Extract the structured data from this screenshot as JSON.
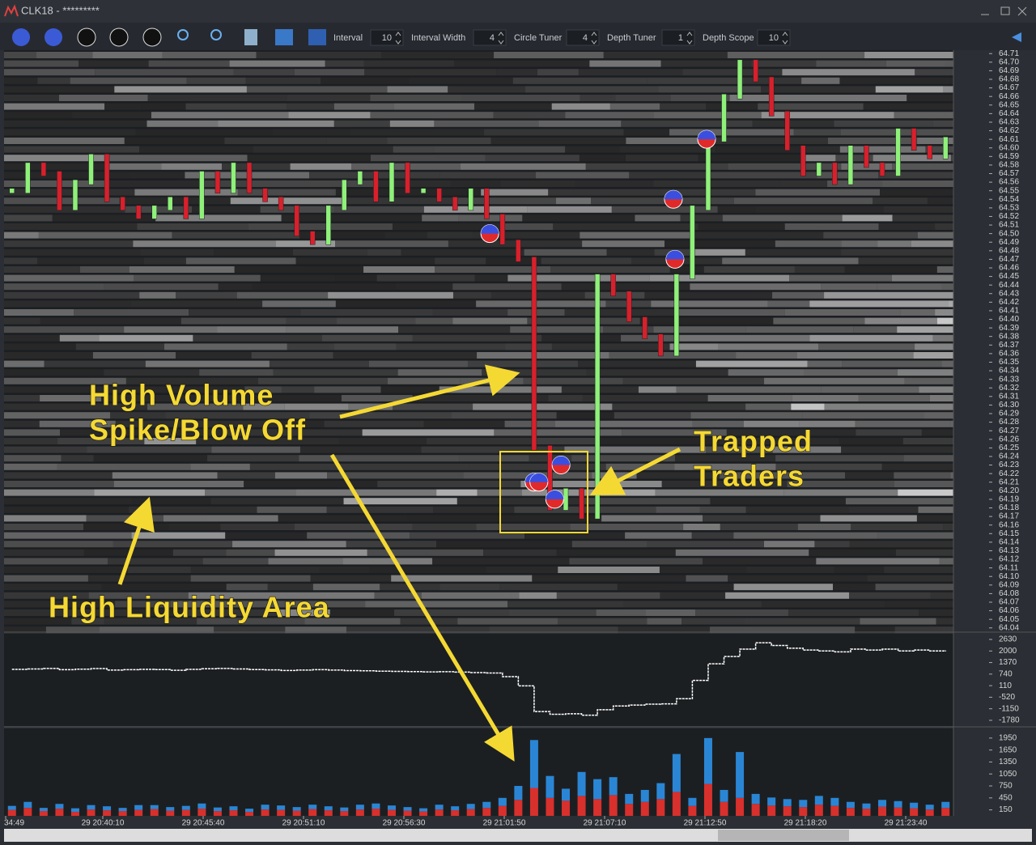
{
  "window": {
    "title": "CLK18 - *********"
  },
  "toolbar": {
    "fields": [
      {
        "label": "Interval",
        "value": 10
      },
      {
        "label": "Interval Width",
        "value": 4
      },
      {
        "label": "Circle Tuner",
        "value": 4
      },
      {
        "label": "Depth Tuner",
        "value": 1
      },
      {
        "label": "Depth Scope",
        "value": 10
      }
    ]
  },
  "chart_data": [
    {
      "type": "price-ladder",
      "ylim": [
        64.036,
        64.714
      ],
      "yticks": [
        64.71,
        {
          "value": 64.7,
          "label": "64.70"
        },
        64.69,
        64.68,
        64.67,
        64.66,
        64.65,
        64.64,
        64.63,
        64.62,
        64.61,
        {
          "value": 64.6,
          "label": "64.60"
        },
        64.59,
        64.58,
        64.57,
        64.56,
        64.55,
        64.54,
        64.53,
        64.52,
        64.51,
        {
          "value": 64.5,
          "label": "64.50"
        },
        64.49,
        64.48,
        64.47,
        64.46,
        64.45,
        64.44,
        64.43,
        64.42,
        64.41,
        {
          "value": 64.4,
          "label": "64.40"
        },
        64.39,
        64.38,
        64.37,
        64.36,
        64.35,
        64.34,
        64.33,
        64.32,
        64.31,
        {
          "value": 64.3,
          "label": "64.30"
        },
        64.29,
        64.28,
        64.27,
        64.26,
        64.25,
        64.24,
        64.23,
        64.22,
        64.21,
        {
          "value": 64.2,
          "label": "64.20"
        },
        64.19,
        64.18,
        64.17,
        64.16,
        64.15,
        64.14,
        64.13,
        64.12,
        64.11,
        {
          "value": 64.1,
          "label": "64.10"
        },
        64.09,
        64.08,
        64.07,
        64.06,
        64.05,
        64.04
      ],
      "values": [
        64.55,
        64.58,
        64.57,
        64.53,
        64.56,
        64.59,
        64.54,
        64.53,
        64.52,
        64.53,
        64.54,
        64.52,
        64.57,
        64.55,
        64.58,
        64.55,
        64.54,
        64.53,
        64.5,
        64.49,
        64.53,
        64.56,
        64.57,
        64.54,
        64.58,
        64.55,
        64.55,
        64.54,
        64.53,
        64.55,
        64.52,
        64.49,
        64.47,
        64.25,
        64.18,
        64.2,
        64.17,
        64.45,
        64.43,
        64.4,
        64.38,
        64.36,
        64.45,
        64.53,
        64.61,
        64.66,
        64.7,
        64.68,
        64.64,
        64.6,
        64.57,
        64.58,
        64.56,
        64.6,
        64.58,
        64.57,
        64.62,
        64.6,
        64.59,
        64.61
      ],
      "markers": {
        "x": [
          30.2,
          41.8,
          41.9,
          43.9,
          33.0,
          33.3,
          34.7,
          34.3
        ],
        "y": [
          64.5,
          64.54,
          64.47,
          64.61,
          64.21,
          64.21,
          64.23,
          64.19
        ]
      }
    },
    {
      "type": "line",
      "ylim": [
        -2090,
        2940
      ],
      "yticks": [
        2630,
        2000,
        1370,
        740,
        110,
        -520,
        -1150,
        -1780
      ],
      "color": "#ffffff",
      "values": [
        1000,
        1020,
        1050,
        980,
        1010,
        1040,
        960,
        980,
        1000,
        990,
        950,
        1000,
        1030,
        1050,
        1020,
        990,
        970,
        940,
        960,
        980,
        960,
        930,
        920,
        900,
        890,
        880,
        860,
        870,
        850,
        820,
        800,
        600,
        100,
        -1300,
        -1450,
        -1420,
        -1500,
        -1200,
        -1000,
        -950,
        -900,
        -880,
        -600,
        400,
        1300,
        1700,
        2100,
        2450,
        2300,
        2150,
        2050,
        2000,
        1950,
        2100,
        2050,
        2100,
        2000,
        2050,
        2000,
        2030
      ]
    },
    {
      "type": "stacked-bar",
      "ylim": [
        0,
        2150
      ],
      "yticks": [
        1950,
        1650,
        1350,
        1050,
        750,
        450,
        150
      ],
      "series": [
        {
          "color": "#d8302c",
          "values": [
            150,
            200,
            120,
            180,
            100,
            160,
            140,
            120,
            150,
            170,
            130,
            150,
            180,
            120,
            140,
            100,
            160,
            150,
            130,
            170,
            140,
            120,
            160,
            180,
            150,
            130,
            110,
            160,
            140,
            170,
            200,
            250,
            400,
            700,
            450,
            380,
            500,
            420,
            520,
            300,
            350,
            420,
            600,
            250,
            800,
            350,
            450,
            300,
            260,
            240,
            220,
            280,
            250,
            200,
            180,
            230,
            210,
            190,
            160,
            200
          ]
        },
        {
          "color": "#2a86d4",
          "values": [
            100,
            150,
            80,
            120,
            90,
            110,
            100,
            80,
            120,
            100,
            90,
            100,
            130,
            90,
            100,
            80,
            120,
            110,
            90,
            110,
            100,
            90,
            120,
            130,
            110,
            90,
            80,
            120,
            100,
            130,
            150,
            200,
            350,
            1200,
            550,
            300,
            600,
            500,
            450,
            250,
            300,
            400,
            950,
            200,
            1150,
            300,
            1150,
            250,
            200,
            180,
            180,
            220,
            200,
            150,
            130,
            170,
            160,
            140,
            120,
            150
          ]
        }
      ]
    }
  ],
  "time_axis": {
    "labels": [
      "34:49",
      "29 20:40:10",
      "29 20:45:40",
      "29 20:51:10",
      "29 20:56:30",
      "29 21:01:50",
      "29 21:07:10",
      "29 21:12:50",
      "29 21:18:20",
      "29 21:23:40"
    ]
  },
  "annotations": [
    {
      "lines": [
        "High Volume",
        "Spike/Blow Off"
      ]
    },
    {
      "lines": [
        "Trapped",
        "Traders"
      ]
    },
    {
      "lines": [
        "High Liquidity Area"
      ]
    }
  ]
}
